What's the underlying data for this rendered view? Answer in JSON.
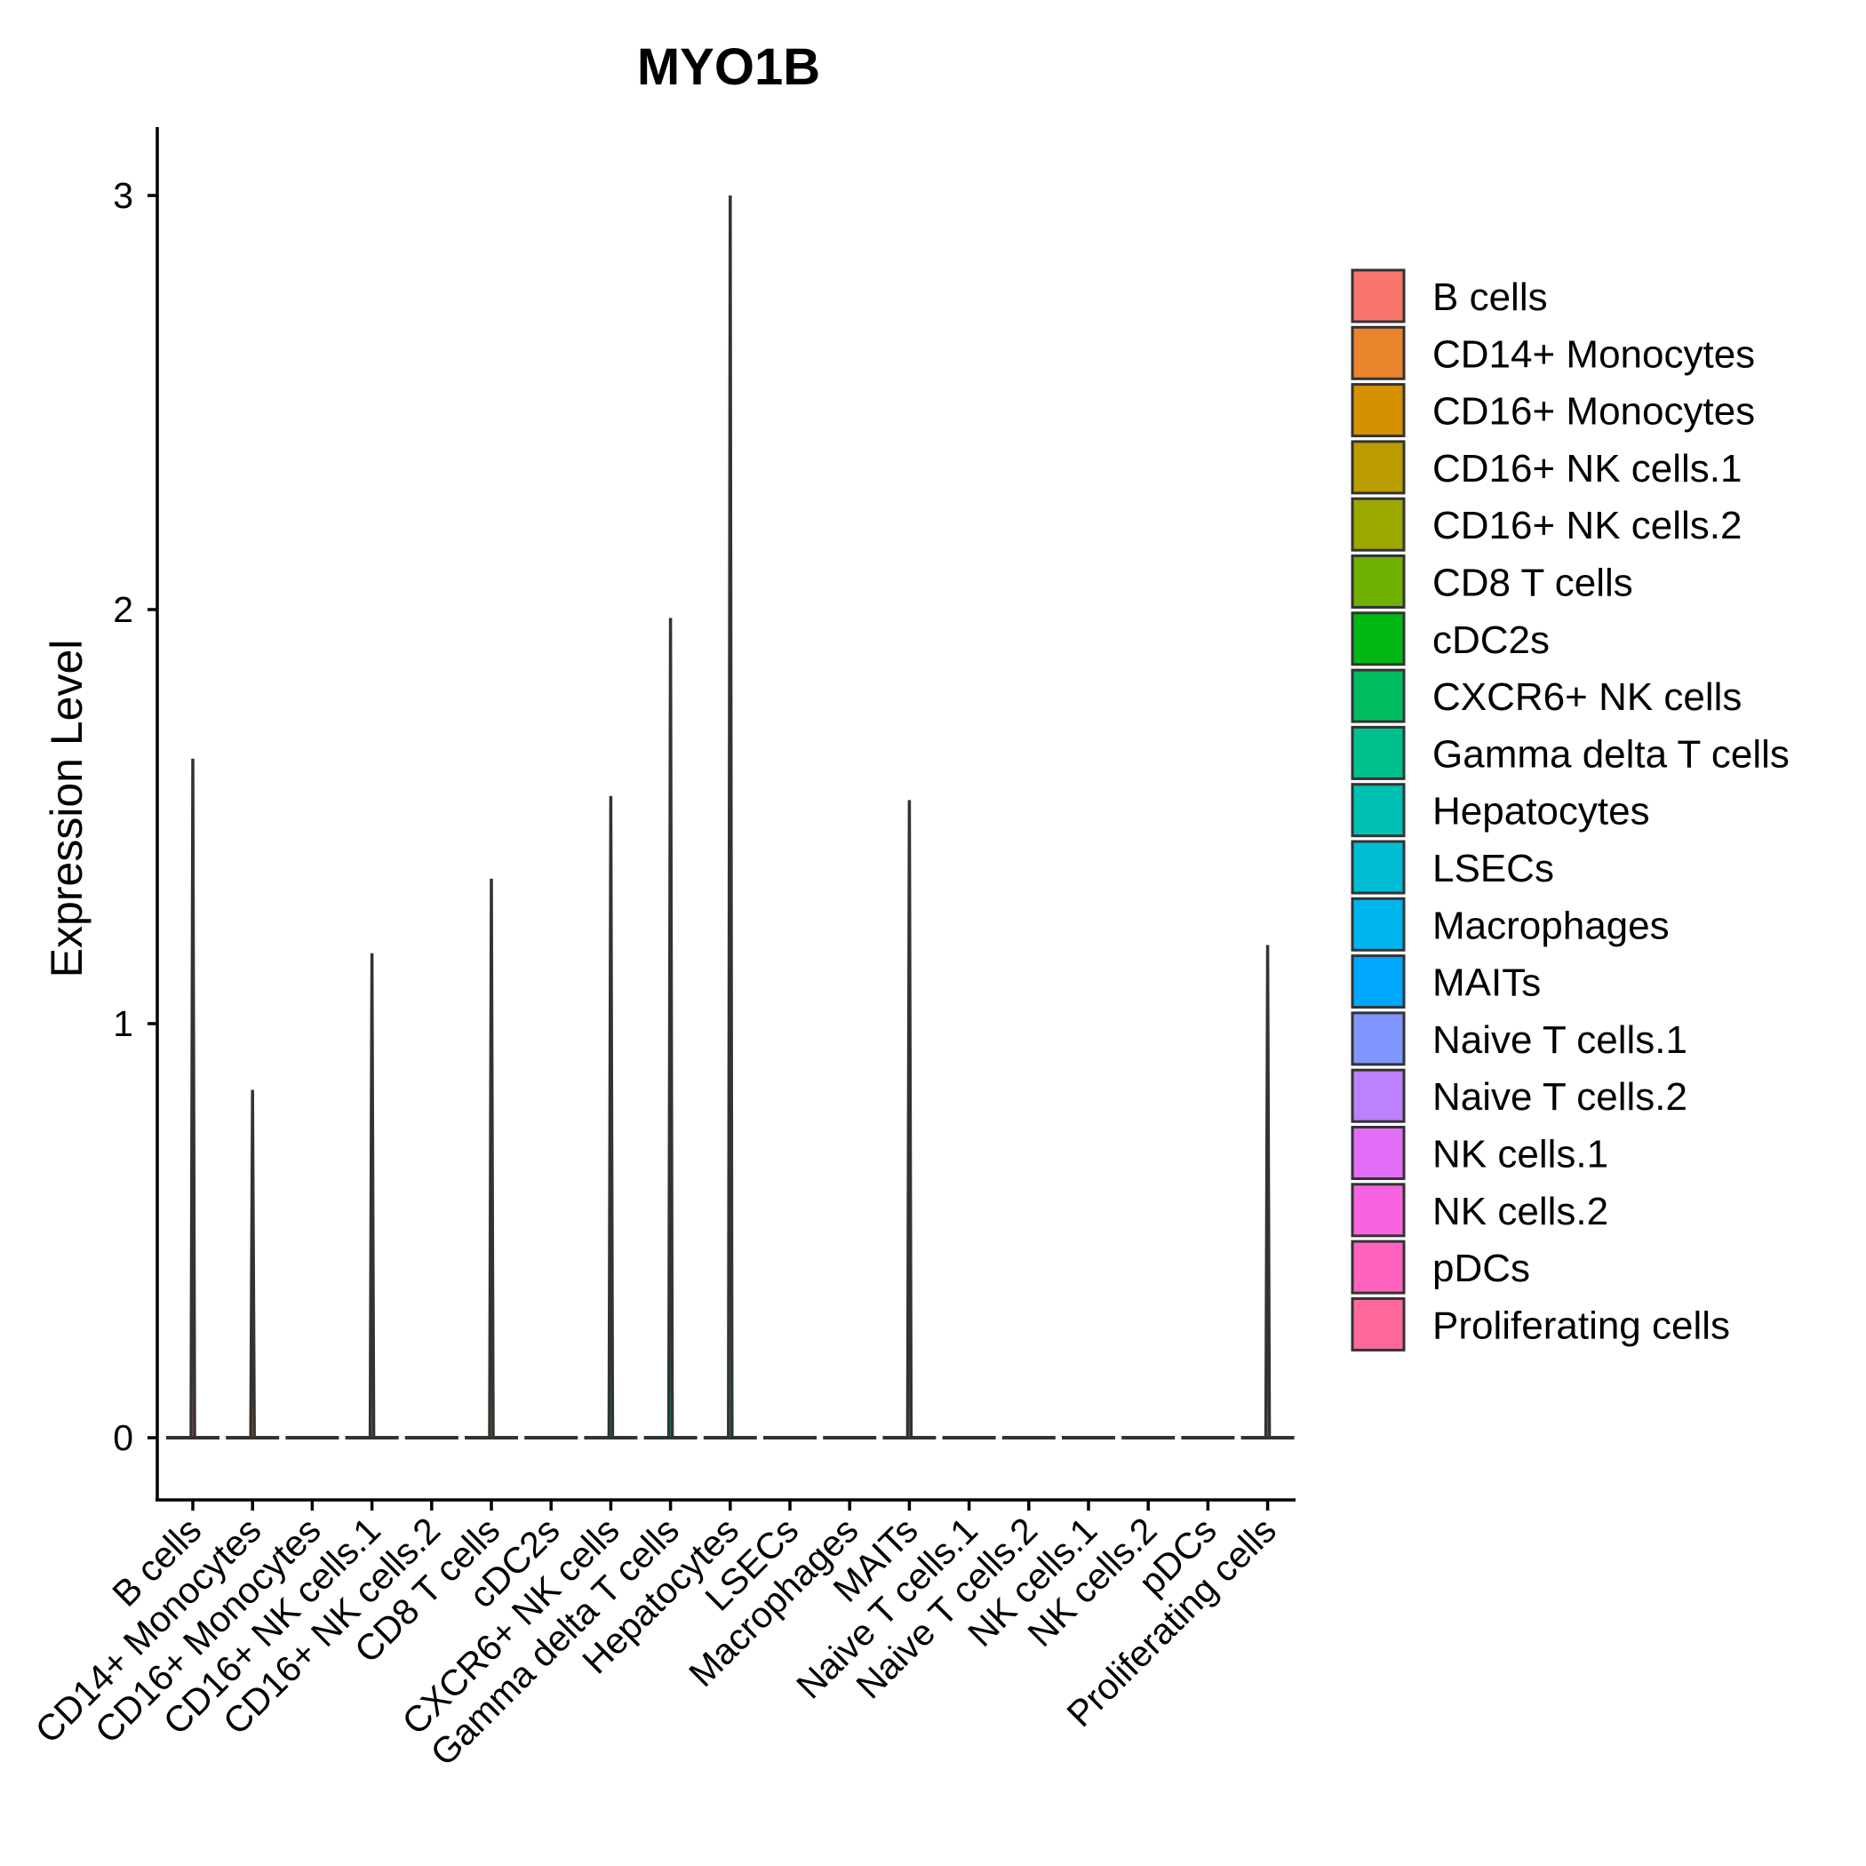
{
  "chart_data": {
    "type": "violin",
    "title": "MYO1B",
    "xlabel": "",
    "ylabel": "Expression Level",
    "ylim": [
      -0.15,
      3.15
    ],
    "yticks": [
      0,
      1,
      2,
      3
    ],
    "categories": [
      "B cells",
      "CD14+ Monocytes",
      "CD16+ Monocytes",
      "CD16+ NK cells.1",
      "CD16+ NK cells.2",
      "CD8 T cells",
      "cDC2s",
      "CXCR6+ NK cells",
      "Gamma delta T cells",
      "Hepatocytes",
      "LSECs",
      "Macrophages",
      "MAITs",
      "Naive T cells.1",
      "Naive T cells.2",
      "NK cells.1",
      "NK cells.2",
      "pDCs",
      "Proliferating cells"
    ],
    "max_values": [
      1.64,
      0.84,
      0,
      1.17,
      0,
      1.35,
      0,
      1.55,
      1.98,
      3.0,
      0,
      0,
      1.54,
      0,
      0,
      0,
      0,
      0,
      1.19
    ],
    "colors": [
      "#F8766D",
      "#E9842C",
      "#D69100",
      "#BC9D00",
      "#9CA700",
      "#6FB000",
      "#00B813",
      "#00BD61",
      "#00C08E",
      "#00C0B4",
      "#00BDD4",
      "#00B5EE",
      "#00A7FF",
      "#7F96FF",
      "#BC81FF",
      "#E26EF7",
      "#F863DF",
      "#FF62BF",
      "#FF6A9A"
    ],
    "legend": {
      "position": "right",
      "entries": [
        "B cells",
        "CD14+ Monocytes",
        "CD16+ Monocytes",
        "CD16+ NK cells.1",
        "CD16+ NK cells.2",
        "CD8 T cells",
        "cDC2s",
        "CXCR6+ NK cells",
        "Gamma delta T cells",
        "Hepatocytes",
        "LSECs",
        "Macrophages",
        "MAITs",
        "Naive T cells.1",
        "Naive T cells.2",
        "NK cells.1",
        "NK cells.2",
        "pDCs",
        "Proliferating cells"
      ]
    }
  }
}
